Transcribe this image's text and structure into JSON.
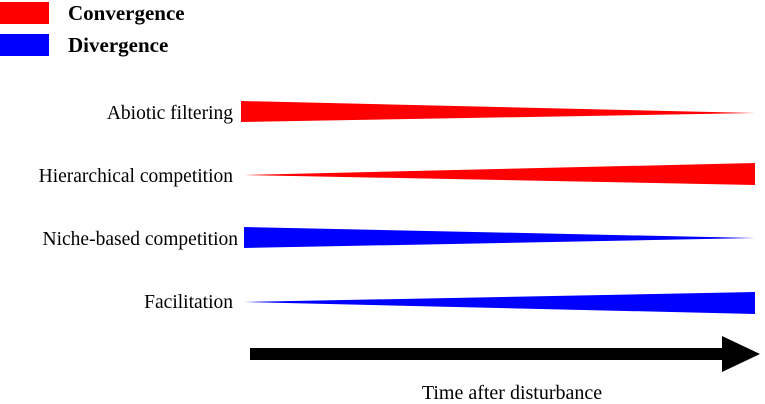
{
  "legend": {
    "items": [
      {
        "label": "Convergence",
        "color": "#ff0000"
      },
      {
        "label": "Divergence",
        "color": "#0000ff"
      }
    ]
  },
  "processes": [
    {
      "label": "Abiotic filtering",
      "type": "Convergence",
      "trend": "decreasing"
    },
    {
      "label": "Hierarchical competition",
      "type": "Convergence",
      "trend": "increasing"
    },
    {
      "label": "Niche-based competition",
      "type": "Divergence",
      "trend": "decreasing"
    },
    {
      "label": "Facilitation",
      "type": "Divergence",
      "trend": "increasing"
    }
  ],
  "axis": {
    "label": "Time after disturbance"
  }
}
